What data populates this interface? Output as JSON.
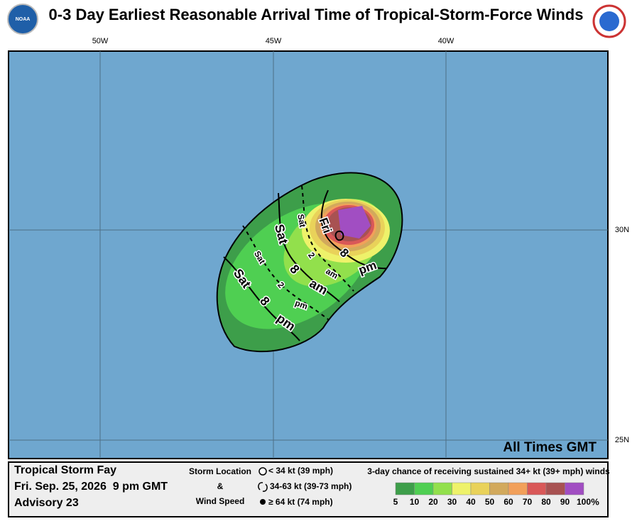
{
  "header": {
    "title": "0-3 Day Earliest Reasonable Arrival Time of Tropical-Storm-Force Winds",
    "logo_left": "NOAA"
  },
  "map": {
    "lon_labels": [
      "50W",
      "45W",
      "40W"
    ],
    "lat_labels": [
      "30N",
      "25N"
    ],
    "note": "All Times GMT",
    "contours": [
      {
        "day": "Fri",
        "hour": "8",
        "ampm": "pm"
      },
      {
        "day": "Sat",
        "hour": "2",
        "ampm": "am"
      },
      {
        "day": "Sat",
        "hour": "8",
        "ampm": "am"
      },
      {
        "day": "Sat",
        "hour": "2",
        "ampm": "pm"
      },
      {
        "day": "Sat",
        "hour": "8",
        "ampm": "pm"
      }
    ]
  },
  "legend": {
    "storm": "Tropical Storm Fay",
    "time": "Fri. Sep. 25, 2026  9 pm GMT",
    "advisory": "Advisory 23",
    "key_title": [
      "Storm Location",
      "&",
      "Wind Speed"
    ],
    "symbols": [
      "< 34 kt (39 mph)",
      "34-63 kt (39-73 mph)",
      "≥ 64 kt (74 mph)"
    ],
    "scale_title": "3-day chance of receiving sustained 34+ kt (39+ mph) winds",
    "scale_labels": [
      "5",
      "10",
      "20",
      "30",
      "40",
      "50",
      "60",
      "70",
      "80",
      "90",
      "100"
    ],
    "scale_unit": "%",
    "scale_colors": [
      "#3d9e4a",
      "#4fcf52",
      "#92e04c",
      "#eef26a",
      "#e9d25a",
      "#d2a95c",
      "#f2a05a",
      "#d95858",
      "#a85252",
      "#a14ec2"
    ]
  }
}
